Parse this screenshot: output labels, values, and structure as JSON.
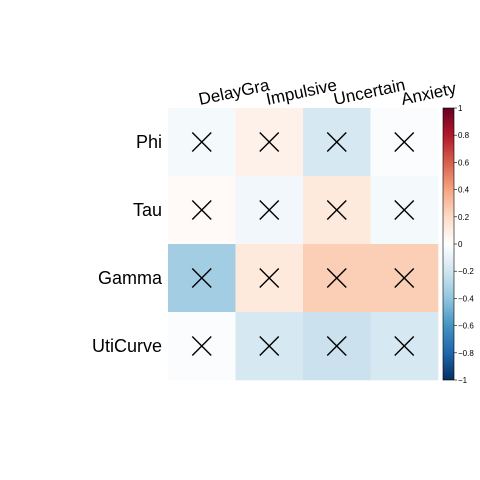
{
  "chart_data": {
    "type": "heatmap",
    "columns": [
      "DelayGra",
      "Impulsive",
      "Uncertain",
      "Anxiety"
    ],
    "rows": [
      "Phi",
      "Tau",
      "Gamma",
      "UtiCurve"
    ],
    "values": [
      [
        -0.05,
        0.08,
        -0.18,
        -0.02
      ],
      [
        0.03,
        -0.06,
        0.12,
        -0.05
      ],
      [
        -0.35,
        0.12,
        0.25,
        0.25
      ],
      [
        -0.02,
        -0.18,
        -0.22,
        -0.18
      ]
    ],
    "cell_marker": "×",
    "colorbar": {
      "range": [
        -1,
        1
      ],
      "ticks": [
        "1",
        "0.8",
        "0.6",
        "0.4",
        "0.2",
        "0",
        "−0.2",
        "−0.4",
        "−0.6",
        "−0.8",
        "−1"
      ],
      "colors": [
        "#67001F",
        "#B2182B",
        "#D6604D",
        "#F4A582",
        "#FDDBC7",
        "#FFFFFF",
        "#D1E5F0",
        "#92C5DE",
        "#4393C3",
        "#2166AC",
        "#053061"
      ]
    },
    "legend_position": "right"
  }
}
